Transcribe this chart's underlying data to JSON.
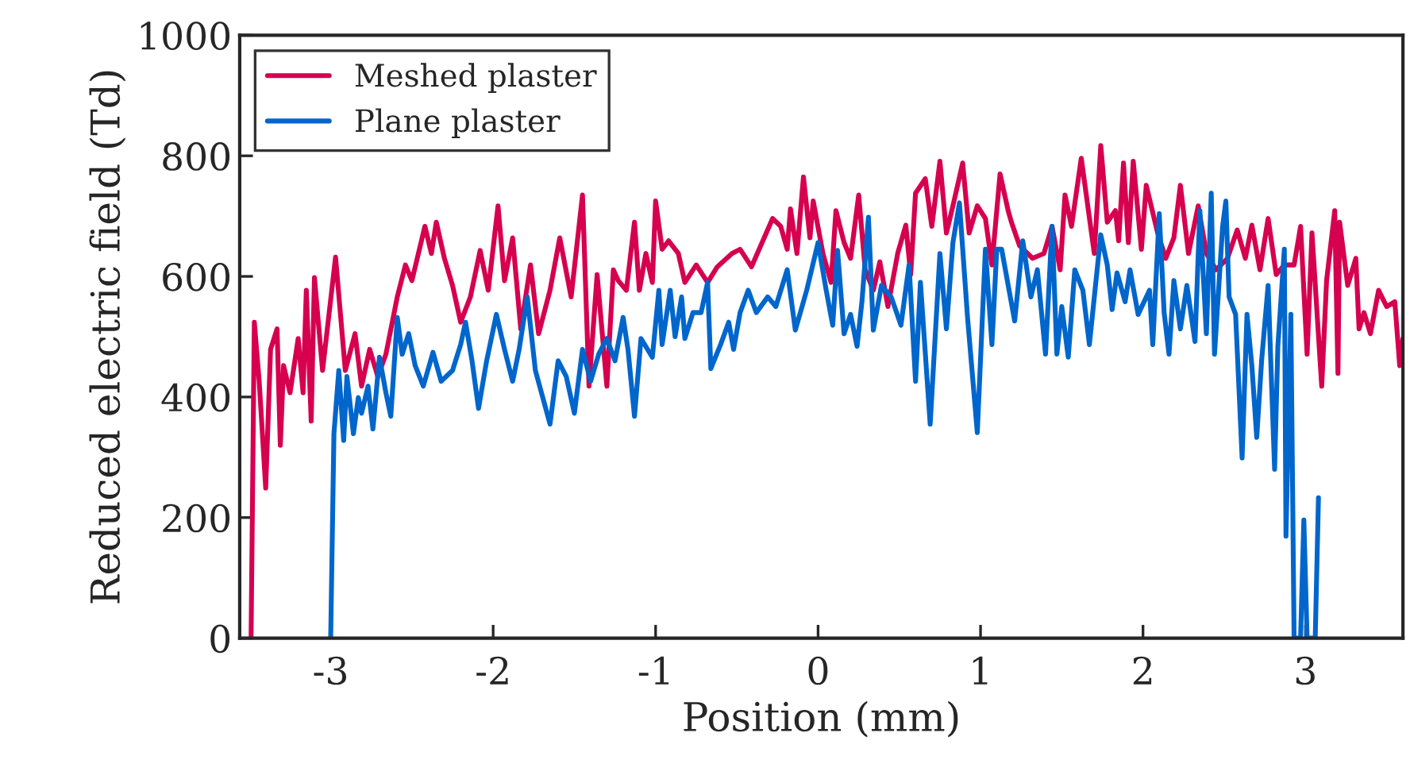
{
  "chart_data": {
    "type": "line",
    "xlabel": "Position (mm)",
    "ylabel": "Reduced electric field (Td)",
    "xlim": [
      -3.56,
      3.6
    ],
    "xticks": [
      {
        "value": -3,
        "label": "-3"
      },
      {
        "value": -2,
        "label": "-2"
      },
      {
        "value": -1,
        "label": "-1"
      },
      0,
      1,
      2,
      3
    ],
    "ylim": [
      0,
      1000
    ],
    "yticks": [
      0,
      200,
      400,
      600,
      800,
      1000
    ],
    "grid": false,
    "legend": "top left",
    "marker": "none",
    "line_style": "solid",
    "series": [
      {
        "name": "Meshed plaster",
        "color": "#d6004f",
        "x": [
          -3.49,
          -3.47,
          -3.44,
          -3.4,
          -3.37,
          -3.33,
          -3.31,
          -3.29,
          -3.25,
          -3.2,
          -3.17,
          -3.15,
          -3.12,
          -3.1,
          -3.05,
          -2.97,
          -2.91,
          -2.85,
          -2.81,
          -2.76,
          -2.71,
          -2.66,
          -2.59,
          -2.54,
          -2.5,
          -2.42,
          -2.38,
          -2.35,
          -2.3,
          -2.25,
          -2.2,
          -2.14,
          -2.08,
          -2.03,
          -1.97,
          -1.93,
          -1.88,
          -1.83,
          -1.77,
          -1.72,
          -1.65,
          -1.59,
          -1.52,
          -1.45,
          -1.41,
          -1.36,
          -1.3,
          -1.26,
          -1.23,
          -1.18,
          -1.13,
          -1.1,
          -1.06,
          -1.02,
          -1.0,
          -0.96,
          -0.92,
          -0.86,
          -0.82,
          -0.75,
          -0.68,
          -0.62,
          -0.53,
          -0.48,
          -0.41,
          -0.34,
          -0.28,
          -0.23,
          -0.19,
          -0.17,
          -0.13,
          -0.09,
          -0.05,
          -0.03,
          0.03,
          0.08,
          0.11,
          0.16,
          0.2,
          0.25,
          0.29,
          0.34,
          0.38,
          0.43,
          0.49,
          0.54,
          0.57,
          0.6,
          0.66,
          0.7,
          0.75,
          0.79,
          0.83,
          0.89,
          0.93,
          0.98,
          1.03,
          1.07,
          1.12,
          1.17,
          1.19,
          1.24,
          1.32,
          1.39,
          1.44,
          1.49,
          1.52,
          1.56,
          1.62,
          1.7,
          1.74,
          1.78,
          1.83,
          1.85,
          1.88,
          1.91,
          1.94,
          1.99,
          2.02,
          2.09,
          2.14,
          2.19,
          2.23,
          2.28,
          2.34,
          2.39,
          2.45,
          2.52,
          2.58,
          2.63,
          2.67,
          2.72,
          2.77,
          2.82,
          2.87,
          2.93,
          2.97,
          3.01,
          3.04,
          3.1,
          3.13,
          3.18,
          3.2,
          3.21,
          3.26,
          3.31,
          3.33,
          3.36,
          3.4,
          3.45,
          3.5,
          3.55,
          3.58,
          3.6
        ],
        "values": [
          0,
          524,
          426,
          249,
          479,
          513,
          320,
          452,
          407,
          497,
          407,
          577,
          360,
          598,
          444,
          632,
          444,
          505,
          418,
          479,
          434,
          471,
          566,
          619,
          593,
          683,
          638,
          690,
          630,
          585,
          524,
          566,
          643,
          577,
          717,
          593,
          664,
          513,
          619,
          505,
          577,
          664,
          566,
          735,
          418,
          603,
          418,
          611,
          593,
          577,
          690,
          577,
          638,
          590,
          725,
          645,
          659,
          638,
          590,
          619,
          590,
          616,
          638,
          645,
          616,
          659,
          696,
          683,
          645,
          712,
          638,
          765,
          664,
          725,
          638,
          590,
          709,
          656,
          630,
          735,
          611,
          577,
          624,
          550,
          638,
          685,
          603,
          738,
          762,
          683,
          791,
          672,
          717,
          788,
          672,
          717,
          696,
          619,
          770,
          709,
          690,
          651,
          630,
          638,
          683,
          611,
          735,
          683,
          796,
          638,
          817,
          690,
          709,
          659,
          788,
          656,
          791,
          645,
          751,
          672,
          630,
          664,
          751,
          638,
          717,
          638,
          611,
          630,
          677,
          630,
          685,
          611,
          696,
          603,
          619,
          619,
          683,
          471,
          672,
          418,
          593,
          709,
          439,
          690,
          585,
          630,
          513,
          540,
          505,
          577,
          550,
          558,
          452,
          497
        ]
      },
      {
        "name": "Plane plaster",
        "color": "#0066cc",
        "x": [
          -3.0,
          -2.98,
          -2.95,
          -2.92,
          -2.9,
          -2.86,
          -2.83,
          -2.81,
          -2.77,
          -2.74,
          -2.7,
          -2.66,
          -2.63,
          -2.59,
          -2.56,
          -2.52,
          -2.48,
          -2.43,
          -2.37,
          -2.32,
          -2.25,
          -2.2,
          -2.17,
          -2.13,
          -2.09,
          -2.04,
          -1.98,
          -1.93,
          -1.88,
          -1.84,
          -1.79,
          -1.74,
          -1.65,
          -1.6,
          -1.55,
          -1.5,
          -1.45,
          -1.4,
          -1.35,
          -1.3,
          -1.25,
          -1.2,
          -1.17,
          -1.13,
          -1.09,
          -1.02,
          -0.98,
          -0.96,
          -0.91,
          -0.88,
          -0.84,
          -0.82,
          -0.77,
          -0.72,
          -0.68,
          -0.66,
          -0.6,
          -0.55,
          -0.52,
          -0.48,
          -0.43,
          -0.38,
          -0.31,
          -0.26,
          -0.19,
          -0.14,
          -0.07,
          0.0,
          0.05,
          0.09,
          0.12,
          0.16,
          0.2,
          0.24,
          0.27,
          0.31,
          0.34,
          0.39,
          0.45,
          0.51,
          0.56,
          0.6,
          0.63,
          0.69,
          0.75,
          0.79,
          0.83,
          0.87,
          0.92,
          0.98,
          1.03,
          1.07,
          1.1,
          1.13,
          1.21,
          1.26,
          1.31,
          1.35,
          1.4,
          1.44,
          1.47,
          1.5,
          1.54,
          1.58,
          1.63,
          1.67,
          1.74,
          1.78,
          1.81,
          1.84,
          1.89,
          1.92,
          1.97,
          2.04,
          2.06,
          2.1,
          2.13,
          2.16,
          2.19,
          2.23,
          2.27,
          2.32,
          2.35,
          2.39,
          2.42,
          2.44,
          2.49,
          2.51,
          2.53,
          2.57,
          2.61,
          2.64,
          2.67,
          2.7,
          2.73,
          2.77,
          2.81,
          2.83,
          2.87,
          2.88,
          2.91,
          2.93,
          2.97,
          2.99,
          3.01,
          3.06,
          3.08
        ],
        "values": [
          0,
          339,
          444,
          328,
          434,
          339,
          399,
          373,
          418,
          347,
          466,
          407,
          368,
          532,
          471,
          505,
          452,
          418,
          474,
          426,
          444,
          487,
          524,
          460,
          381,
          460,
          537,
          479,
          426,
          479,
          566,
          444,
          355,
          460,
          434,
          373,
          479,
          426,
          471,
          497,
          460,
          532,
          479,
          368,
          497,
          466,
          577,
          487,
          577,
          500,
          566,
          497,
          540,
          540,
          590,
          447,
          487,
          524,
          479,
          540,
          577,
          540,
          566,
          550,
          611,
          511,
          577,
          656,
          577,
          519,
          643,
          505,
          537,
          484,
          558,
          698,
          511,
          585,
          566,
          519,
          619,
          426,
          590,
          355,
          638,
          513,
          656,
          722,
          532,
          341,
          645,
          487,
          645,
          645,
          526,
          659,
          566,
          611,
          471,
          683,
          471,
          550,
          466,
          611,
          577,
          487,
          669,
          619,
          545,
          606,
          558,
          611,
          537,
          577,
          487,
          704,
          540,
          471,
          593,
          513,
          585,
          492,
          709,
          505,
          738,
          471,
          683,
          725,
          566,
          537,
          299,
          537,
          452,
          333,
          460,
          585,
          280,
          484,
          645,
          169,
          537,
          0,
          0,
          196,
          0,
          0,
          233
        ]
      }
    ]
  }
}
